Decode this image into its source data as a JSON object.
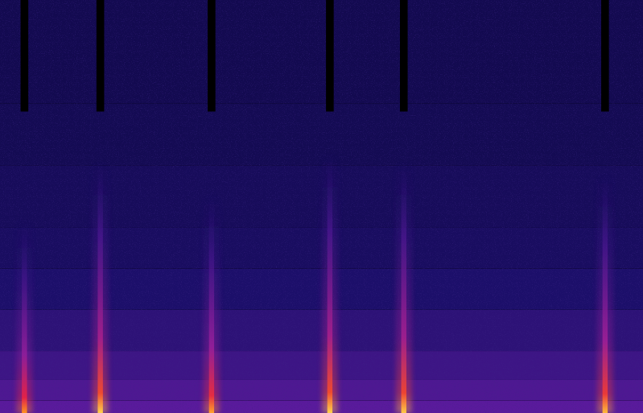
{
  "chart_data": {
    "type": "spectrogram",
    "tick_labels": false,
    "grid": false,
    "xlim": [
      0,
      100
    ],
    "ylim": [
      0,
      100
    ],
    "zlim": [
      0,
      100
    ],
    "x": [
      3.8,
      15.6,
      32.9,
      51.3,
      62.8,
      94.1
    ],
    "duration": [
      1.2,
      1.2,
      1.2,
      1.2,
      1.2,
      1.2
    ],
    "peak_level": [
      88,
      96,
      90,
      96,
      95,
      93
    ],
    "top_frequency": [
      47,
      61,
      53,
      63,
      61,
      58
    ],
    "dropout_from": [
      73,
      73,
      73,
      73,
      73,
      73
    ],
    "background": {
      "frequencies": [
        0,
        3,
        8,
        15,
        25,
        35,
        45,
        60,
        75,
        100
      ],
      "levels": [
        40,
        37,
        33,
        29,
        25,
        22,
        20,
        18,
        17
      ]
    }
  }
}
